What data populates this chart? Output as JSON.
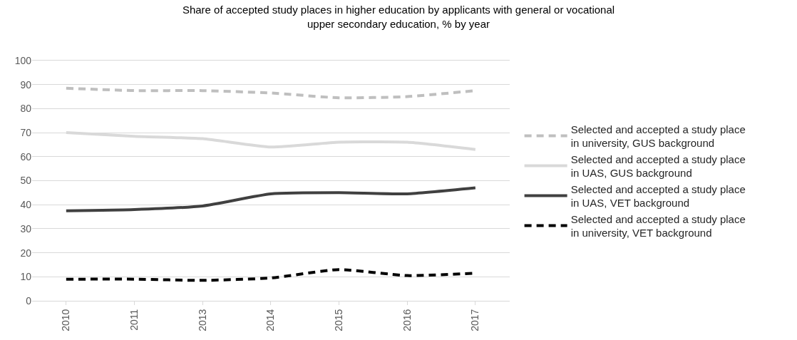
{
  "chart_data": {
    "type": "line",
    "title": "Share of accepted study places in higher education by applicants with general or vocational upper secondary education, % by year",
    "categories": [
      "2010",
      "2011",
      "2013",
      "2014",
      "2015",
      "2016",
      "2017"
    ],
    "series": [
      {
        "name": "Selected and accepted a study place in university, GUS background",
        "color": "#bfbfbf",
        "line_style": "dashed",
        "values": [
          88.5,
          87.5,
          87.5,
          86.5,
          84.5,
          85,
          87.5
        ]
      },
      {
        "name": "Selected and accepted a study place in UAS, GUS background",
        "color": "#d9d9d9",
        "line_style": "solid",
        "values": [
          70,
          68.5,
          67.5,
          64,
          66,
          66,
          63
        ]
      },
      {
        "name": "Selected and accepted a study place in UAS, VET background",
        "color": "#404040",
        "line_style": "solid",
        "values": [
          37.5,
          38,
          39.5,
          44.5,
          45,
          44.5,
          47
        ]
      },
      {
        "name": "Selected and accepted a study place in university, VET background",
        "color": "#000000",
        "line_style": "dashed",
        "values": [
          9,
          9,
          8.5,
          9.5,
          13,
          10.5,
          11.5
        ]
      }
    ],
    "ylim": [
      0,
      100
    ],
    "yticks": [
      0,
      10,
      20,
      30,
      40,
      50,
      60,
      70,
      80,
      90,
      100
    ],
    "grid": "y",
    "legend": "right",
    "marker": "none"
  }
}
